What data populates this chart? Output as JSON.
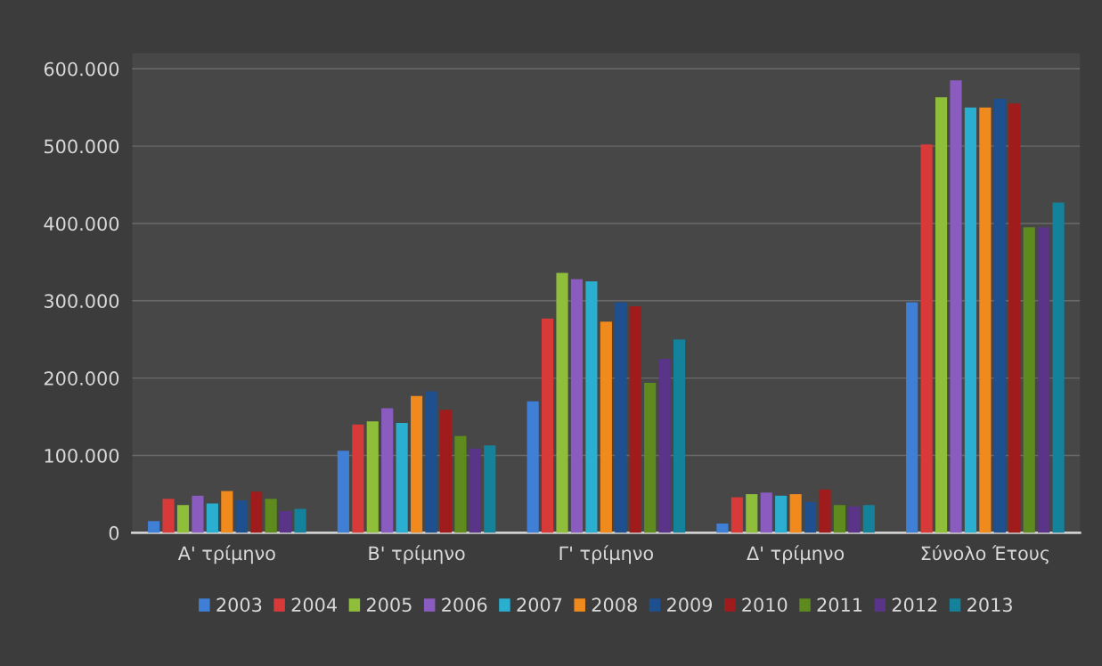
{
  "chart_data": {
    "type": "bar",
    "categories": [
      "Α' τρίμηνο",
      "Β' τρίμηνο",
      "Γ' τρίμηνο",
      "Δ' τρίμηνο",
      "Σύνολο Έτους"
    ],
    "series": [
      {
        "name": "2003",
        "color": "#3f7fd6",
        "values": [
          15000,
          106000,
          170000,
          12000,
          298000
        ]
      },
      {
        "name": "2004",
        "color": "#d83a3a",
        "values": [
          44000,
          140000,
          277000,
          46000,
          502000
        ]
      },
      {
        "name": "2005",
        "color": "#8fbf3a",
        "values": [
          36000,
          144000,
          336000,
          50000,
          563000
        ]
      },
      {
        "name": "2006",
        "color": "#8a5cc0",
        "values": [
          48000,
          161000,
          328000,
          52000,
          585000
        ]
      },
      {
        "name": "2007",
        "color": "#2aafd0",
        "values": [
          38000,
          142000,
          325000,
          48000,
          550000
        ]
      },
      {
        "name": "2008",
        "color": "#f08a1c",
        "values": [
          54000,
          177000,
          273000,
          50000,
          550000
        ]
      },
      {
        "name": "2009",
        "color": "#1e4f8f",
        "values": [
          42000,
          183000,
          298000,
          40000,
          561000
        ]
      },
      {
        "name": "2010",
        "color": "#a01c1c",
        "values": [
          53000,
          159000,
          293000,
          56000,
          555000
        ]
      },
      {
        "name": "2011",
        "color": "#5f8a1e",
        "values": [
          44000,
          125000,
          194000,
          36000,
          395000
        ]
      },
      {
        "name": "2012",
        "color": "#5a3488",
        "values": [
          28000,
          109000,
          225000,
          34000,
          395000
        ]
      },
      {
        "name": "2013",
        "color": "#14829a",
        "values": [
          31000,
          113000,
          250000,
          36000,
          427000
        ]
      }
    ],
    "ylim": [
      0,
      620000
    ],
    "yticks": [
      0,
      {
        "value": 100000,
        "label": "100.000"
      },
      {
        "value": 200000,
        "label": "200.000"
      },
      {
        "value": 300000,
        "label": "300.000"
      },
      {
        "value": 400000,
        "label": "400.000"
      },
      {
        "value": 500000,
        "label": "500.000"
      },
      {
        "value": 600000,
        "label": "600.000"
      }
    ],
    "grid": "y",
    "legend": "bottom"
  }
}
